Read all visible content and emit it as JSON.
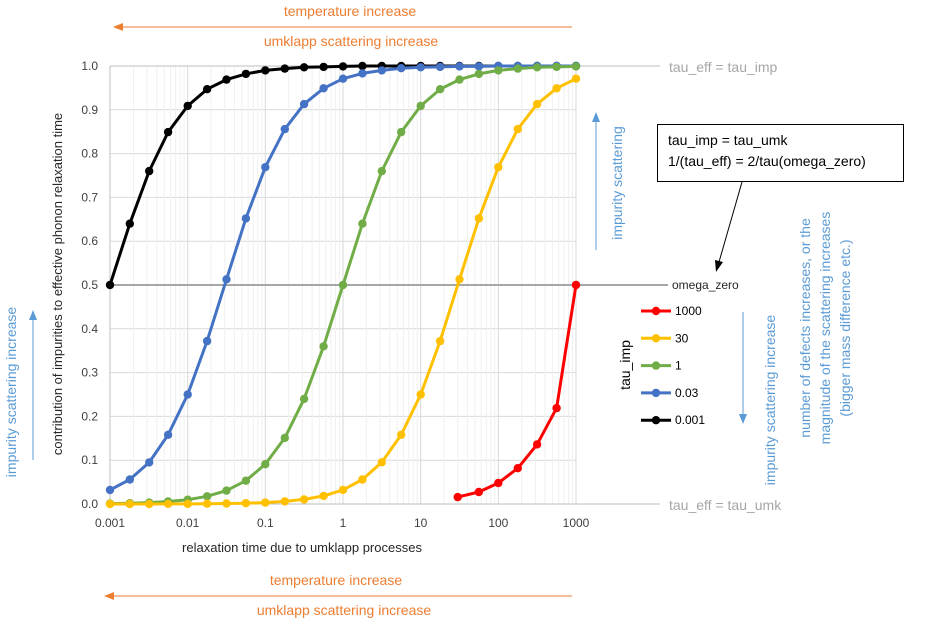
{
  "annotations": {
    "top_temperature": "temperature increase",
    "top_umklapp": "umklapp scattering increase",
    "bottom_temperature": "temperature increase",
    "bottom_umklapp": "umklapp scattering increase",
    "tau_eff_imp": "tau_eff = tau_imp",
    "tau_eff_umk": "tau_eff = tau_umk",
    "omega_zero": "omega_zero",
    "impurity_scattering_right": "impurity scattering",
    "impurity_scattering_increase_left": "impurity scattering increase",
    "impurity_scattering_increase_right": "impurity scattering increase",
    "defects_note": [
      "number of defects increases, or the",
      "magnitude of the scattering increases",
      "(bigger mass difference etc.)"
    ],
    "box_line1": "tau_imp = tau_umk",
    "box_line2": "1/(tau_eff) = 2/tau(omega_zero)"
  },
  "colors": {
    "orange": "#ED7D31",
    "blue": "#5B9BD5",
    "gray": "#A6A6A6"
  },
  "chart_data": {
    "type": "line",
    "xscale": "log",
    "title": "",
    "xlabel": "relaxation time due to umklapp processes",
    "ylabel": "contribution of impurities to effective phonon relaxation time",
    "xlim": [
      0.001,
      1000
    ],
    "ylim": [
      0,
      1
    ],
    "x_ticks": [
      "0.001",
      "0.01",
      "0.1",
      "1",
      "10",
      "100",
      "1000"
    ],
    "y_ticks": [
      "0.0",
      "0.1",
      "0.2",
      "0.3",
      "0.4",
      "0.5",
      "0.6",
      "0.7",
      "0.8",
      "0.9",
      "1.0"
    ],
    "legend_title": "tau_imp",
    "legend_position": "right",
    "series": [
      {
        "name": "1000",
        "color": "#FF0000",
        "values": [
          [
            30,
            0.0158
          ],
          [
            56,
            0.0275
          ],
          [
            100,
            0.048
          ],
          [
            178,
            0.0818
          ],
          [
            316,
            0.136
          ],
          [
            562,
            0.219
          ],
          [
            1000,
            0.5
          ]
        ]
      },
      {
        "name": "30",
        "color": "#FFC000",
        "values": [
          [
            0.001,
            0.0001
          ],
          [
            0.0018,
            0.0001
          ],
          [
            0.0032,
            0.0001
          ],
          [
            0.0056,
            0.0002
          ],
          [
            0.01,
            0.0003
          ],
          [
            0.0178,
            0.0006
          ],
          [
            0.0316,
            0.0011
          ],
          [
            0.0562,
            0.0019
          ],
          [
            0.1,
            0.0033
          ],
          [
            0.178,
            0.0059
          ],
          [
            0.316,
            0.0104
          ],
          [
            0.562,
            0.0184
          ],
          [
            1,
            0.0323
          ],
          [
            1.78,
            0.0559
          ],
          [
            3.16,
            0.0953
          ],
          [
            5.62,
            0.158
          ],
          [
            10,
            0.25
          ],
          [
            17.8,
            0.372
          ],
          [
            31.6,
            0.513
          ],
          [
            56.2,
            0.652
          ],
          [
            100,
            0.769
          ],
          [
            178,
            0.856
          ],
          [
            316,
            0.913
          ],
          [
            562,
            0.949
          ],
          [
            1000,
            0.971
          ]
        ]
      },
      {
        "name": "1",
        "color": "#70AD47",
        "values": [
          [
            0.001,
            0.001
          ],
          [
            0.0018,
            0.0018
          ],
          [
            0.0032,
            0.0032
          ],
          [
            0.0056,
            0.0056
          ],
          [
            0.01,
            0.0099
          ],
          [
            0.0178,
            0.0175
          ],
          [
            0.0316,
            0.0306
          ],
          [
            0.0562,
            0.0532
          ],
          [
            0.1,
            0.0909
          ],
          [
            0.178,
            0.151
          ],
          [
            0.316,
            0.24
          ],
          [
            0.562,
            0.36
          ],
          [
            1,
            0.5
          ],
          [
            1.78,
            0.64
          ],
          [
            3.16,
            0.76
          ],
          [
            5.62,
            0.849
          ],
          [
            10,
            0.909
          ],
          [
            17.8,
            0.947
          ],
          [
            31.6,
            0.969
          ],
          [
            56.2,
            0.982
          ],
          [
            100,
            0.99
          ],
          [
            178,
            0.994
          ],
          [
            316,
            0.997
          ],
          [
            562,
            0.998
          ],
          [
            1000,
            0.999
          ]
        ]
      },
      {
        "name": "0.03",
        "color": "#4472C4",
        "values": [
          [
            0.001,
            0.032
          ],
          [
            0.0018,
            0.056
          ],
          [
            0.0032,
            0.095
          ],
          [
            0.0056,
            0.158
          ],
          [
            0.01,
            0.25
          ],
          [
            0.0178,
            0.372
          ],
          [
            0.0316,
            0.513
          ],
          [
            0.0562,
            0.652
          ],
          [
            0.1,
            0.769
          ],
          [
            0.178,
            0.856
          ],
          [
            0.316,
            0.913
          ],
          [
            0.562,
            0.949
          ],
          [
            1,
            0.971
          ],
          [
            1.78,
            0.983
          ],
          [
            3.16,
            0.99
          ],
          [
            5.62,
            0.995
          ],
          [
            10,
            0.997
          ],
          [
            17.8,
            0.998
          ],
          [
            31.6,
            0.999
          ],
          [
            56.2,
            0.999
          ],
          [
            100,
            1.0
          ],
          [
            178,
            1.0
          ],
          [
            316,
            1.0
          ],
          [
            562,
            1.0
          ],
          [
            1000,
            1.0
          ]
        ]
      },
      {
        "name": "0.001",
        "color": "#000000",
        "values": [
          [
            0.001,
            0.5
          ],
          [
            0.0018,
            0.64
          ],
          [
            0.0032,
            0.76
          ],
          [
            0.0056,
            0.849
          ],
          [
            0.01,
            0.909
          ],
          [
            0.0178,
            0.947
          ],
          [
            0.0316,
            0.969
          ],
          [
            0.0562,
            0.982
          ],
          [
            0.1,
            0.99
          ],
          [
            0.178,
            0.994
          ],
          [
            0.316,
            0.997
          ],
          [
            0.562,
            0.998
          ],
          [
            1,
            0.999
          ],
          [
            1.78,
            1.0
          ],
          [
            3.16,
            1.0
          ],
          [
            5.62,
            1.0
          ],
          [
            10,
            1.0
          ],
          [
            17.8,
            1.0
          ],
          [
            31.6,
            1.0
          ],
          [
            56.2,
            1.0
          ],
          [
            100,
            1.0
          ],
          [
            178,
            1.0
          ],
          [
            316,
            1.0
          ],
          [
            562,
            1.0
          ],
          [
            1000,
            1.0
          ]
        ]
      }
    ]
  }
}
